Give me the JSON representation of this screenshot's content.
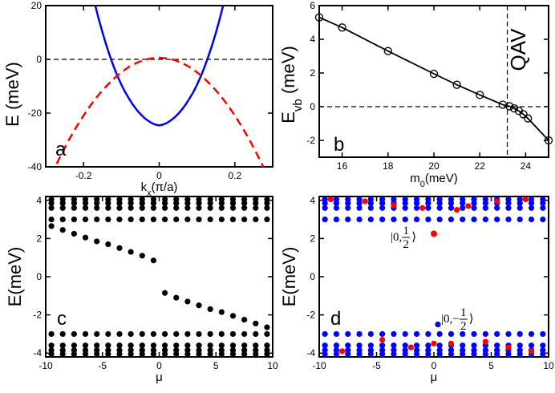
{
  "chart_data": [
    {
      "type": "line",
      "panel_label": "a",
      "xlabel": "k_x(π/a)",
      "ylabel": "E (meV)",
      "xlim": [
        -0.3,
        0.3
      ],
      "ylim": [
        -40,
        20
      ],
      "xticks": [
        -0.2,
        0,
        0.2
      ],
      "xtick_labels": [
        "-0.2",
        "0",
        "0.2"
      ],
      "yticks": [
        -40,
        -20,
        0,
        20
      ],
      "ytick_labels": [
        "-40",
        "-20",
        "0",
        "20"
      ],
      "colors": {
        "blue_curve": "#0000ff",
        "red_curve": "#ff0000",
        "zero_line": "#000000"
      },
      "series": [
        {
          "style": "solid",
          "color": "#0000ff",
          "x": [
            -0.17,
            -0.16,
            -0.15,
            -0.14,
            -0.13,
            -0.12,
            -0.11,
            -0.1,
            -0.09,
            -0.08,
            -0.07,
            -0.06,
            -0.05,
            -0.04,
            -0.03,
            -0.02,
            -0.01,
            0.0,
            0.01,
            0.02,
            0.03,
            0.04,
            0.05,
            0.06,
            0.07,
            0.08,
            0.09,
            0.1,
            0.11,
            0.12,
            0.13,
            0.14,
            0.15,
            0.16,
            0.17
          ],
          "y": [
            20.6,
            15.1,
            10.0,
            5.3,
            1.1,
            -2.8,
            -6.3,
            -9.4,
            -12.2,
            -14.6,
            -16.8,
            -18.7,
            -20.3,
            -21.7,
            -22.8,
            -23.7,
            -24.3,
            -24.6,
            -24.3,
            -23.7,
            -22.8,
            -21.7,
            -20.3,
            -18.7,
            -16.8,
            -14.6,
            -12.2,
            -9.4,
            -6.3,
            -2.8,
            1.1,
            5.3,
            10.0,
            15.1,
            20.6
          ]
        },
        {
          "style": "dashed",
          "color": "#ff0000",
          "x": [
            -0.3,
            -0.28,
            -0.26,
            -0.24,
            -0.22,
            -0.2,
            -0.18,
            -0.16,
            -0.14,
            -0.12,
            -0.1,
            -0.08,
            -0.06,
            -0.04,
            -0.02,
            0.0,
            0.02,
            0.04,
            0.06,
            0.08,
            0.1,
            0.12,
            0.14,
            0.16,
            0.18,
            0.2,
            0.22,
            0.24,
            0.26,
            0.28,
            0.3
          ],
          "y": [
            -47.5,
            -41.4,
            -35.7,
            -30.3,
            -25.4,
            -20.9,
            -16.8,
            -13.2,
            -10.0,
            -7.2,
            -4.8,
            -2.8,
            -1.3,
            -0.2,
            0.4,
            0.6,
            0.4,
            -0.2,
            -1.3,
            -2.8,
            -4.8,
            -7.2,
            -10.0,
            -13.2,
            -16.8,
            -20.9,
            -25.4,
            -30.3,
            -35.7,
            -41.4,
            -47.5
          ]
        }
      ],
      "hline": 0
    },
    {
      "type": "line",
      "panel_label": "b",
      "xlabel": "m_0(meV)",
      "ylabel": "E_vb (meV)",
      "annotation": "QAV",
      "xlim": [
        15,
        25
      ],
      "ylim": [
        -3,
        6
      ],
      "xticks": [
        16,
        18,
        20,
        22,
        24
      ],
      "xtick_labels": [
        "16",
        "18",
        "20",
        "22",
        "24"
      ],
      "yticks": [
        -2,
        0,
        2,
        4,
        6
      ],
      "ytick_labels": [
        "-2",
        "0",
        "2",
        "4",
        "6"
      ],
      "series": [
        {
          "marker": "open-circle",
          "color": "#000000",
          "x": [
            15.0,
            16.0,
            18.0,
            20.0,
            21.0,
            22.0,
            23.0,
            23.3,
            23.5,
            23.7,
            23.9,
            24.1,
            25.0
          ],
          "y": [
            5.3,
            4.7,
            3.3,
            1.95,
            1.3,
            0.7,
            0.12,
            0.02,
            -0.1,
            -0.25,
            -0.45,
            -0.7,
            -2.0
          ]
        }
      ],
      "hline": 0,
      "vline": 23.2
    },
    {
      "type": "scatter",
      "panel_label": "c",
      "xlabel": "μ",
      "ylabel": "E(meV)",
      "xlim": [
        -10,
        10
      ],
      "ylim": [
        -4.2,
        4.2
      ],
      "xticks": [
        -10,
        -5,
        0,
        5,
        10
      ],
      "xtick_labels": [
        "-10",
        "-5",
        "0",
        "5",
        "10"
      ],
      "yticks": [
        -4,
        -2,
        0,
        2,
        4
      ],
      "ytick_labels": [
        "-4",
        "-2",
        "0",
        "2",
        "4"
      ],
      "x_grid": [
        -9.5,
        -8.5,
        -7.5,
        -6.5,
        -5.5,
        -4.5,
        -3.5,
        -2.5,
        -1.5,
        -0.5,
        0.5,
        1.5,
        2.5,
        3.5,
        4.5,
        5.5,
        6.5,
        7.5,
        8.5,
        9.5
      ],
      "flat_levels": [
        4.05,
        3.85,
        3.6,
        3.0,
        -3.0,
        -3.6,
        -3.85,
        -4.05
      ],
      "edge_state": {
        "x": [
          -9.5,
          -8.5,
          -7.5,
          -6.5,
          -5.5,
          -4.5,
          -3.5,
          -2.5,
          -1.5,
          -0.5,
          0.5,
          1.5,
          2.5,
          3.5,
          4.5,
          5.5,
          6.5,
          7.5,
          8.5,
          9.5
        ],
        "y": [
          2.65,
          2.45,
          2.25,
          2.05,
          1.85,
          1.7,
          1.5,
          1.3,
          1.1,
          0.85,
          -0.85,
          -1.1,
          -1.3,
          -1.5,
          -1.7,
          -1.85,
          -2.05,
          -2.25,
          -2.45,
          -2.65
        ]
      },
      "color": "#000000"
    },
    {
      "type": "scatter",
      "panel_label": "d",
      "xlabel": "μ",
      "ylabel": "E(meV)",
      "xlim": [
        -10,
        10
      ],
      "ylim": [
        -4.2,
        4.2
      ],
      "xticks": [
        -10,
        -5,
        0,
        5,
        10
      ],
      "xtick_labels": [
        "-10",
        "-5",
        "0",
        "5",
        "10"
      ],
      "yticks": [
        -4,
        -2,
        0,
        2,
        4
      ],
      "ytick_labels": [
        "-4",
        "-2",
        "0",
        "2",
        "4"
      ],
      "x_grid": [
        -9.5,
        -8.5,
        -7.5,
        -6.5,
        -5.5,
        -4.5,
        -3.5,
        -2.5,
        -1.5,
        -0.5,
        0.5,
        1.5,
        2.5,
        3.5,
        4.5,
        5.5,
        6.5,
        7.5,
        8.5,
        9.5
      ],
      "flat_levels": [
        4.05,
        3.85,
        3.6,
        3.0,
        -3.0,
        -3.6,
        -3.85,
        -4.05
      ],
      "blue_color": "#0000ff",
      "red_color": "#ff0000",
      "red_points": {
        "x": [
          -9.0,
          -6.0,
          -3.5,
          -1.0,
          0.0,
          2.0,
          3.0,
          5.5,
          8.0,
          -8.0,
          -4.5,
          -2.0,
          0.0,
          1.5,
          4.5,
          6.5,
          8.5
        ],
        "y": [
          4.05,
          3.95,
          3.75,
          3.6,
          2.25,
          3.5,
          3.7,
          3.95,
          4.05,
          -3.9,
          -3.3,
          -3.7,
          -3.5,
          -3.5,
          -3.4,
          -3.7,
          -3.9
        ]
      },
      "highlight": {
        "x": [
          0.0,
          0.0
        ],
        "y": [
          2.25,
          -2.5
        ]
      },
      "annotations": [
        {
          "label": "|0, 1/2⟩",
          "x": -1.6,
          "y": 2.25
        },
        {
          "label": "|0,−1/2⟩",
          "x": 0.8,
          "y": -2.5
        }
      ]
    }
  ]
}
